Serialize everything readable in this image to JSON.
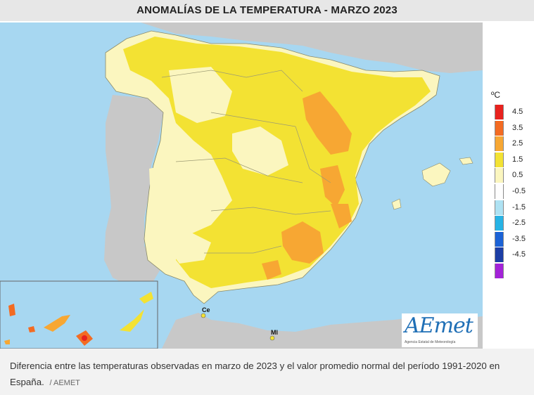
{
  "map": {
    "title": "ANOMALÍAS DE LA TEMPERATURA - MARZO 2023",
    "labels": {
      "ceuta": "Ce",
      "melilla": "Ml"
    }
  },
  "legend": {
    "unit": "ºC",
    "items": [
      {
        "label": "4.5",
        "color": "#e8221e"
      },
      {
        "label": "3.5",
        "color": "#f36b22"
      },
      {
        "label": "2.5",
        "color": "#f7a733"
      },
      {
        "label": "1.5",
        "color": "#f3e233"
      },
      {
        "label": "0.5",
        "color": "#fbf6bf"
      },
      {
        "label": "-0.5",
        "color": "#fefefe"
      },
      {
        "label": "-1.5",
        "color": "#aee2f3"
      },
      {
        "label": "-2.5",
        "color": "#27b3e5"
      },
      {
        "label": "-3.5",
        "color": "#1b62d6"
      },
      {
        "label": "-4.5",
        "color": "#1c3ea5"
      },
      {
        "label": "",
        "color": "#a322d8"
      }
    ]
  },
  "logo": {
    "word": "AEmet",
    "sub": "Agencia Estatal de Meteorología"
  },
  "caption": {
    "text": "Diferencia entre las temperaturas observadas en marzo de 2023 y el valor promedio normal del período 1991-2020 en España.",
    "credit": "/ AEMET"
  }
}
